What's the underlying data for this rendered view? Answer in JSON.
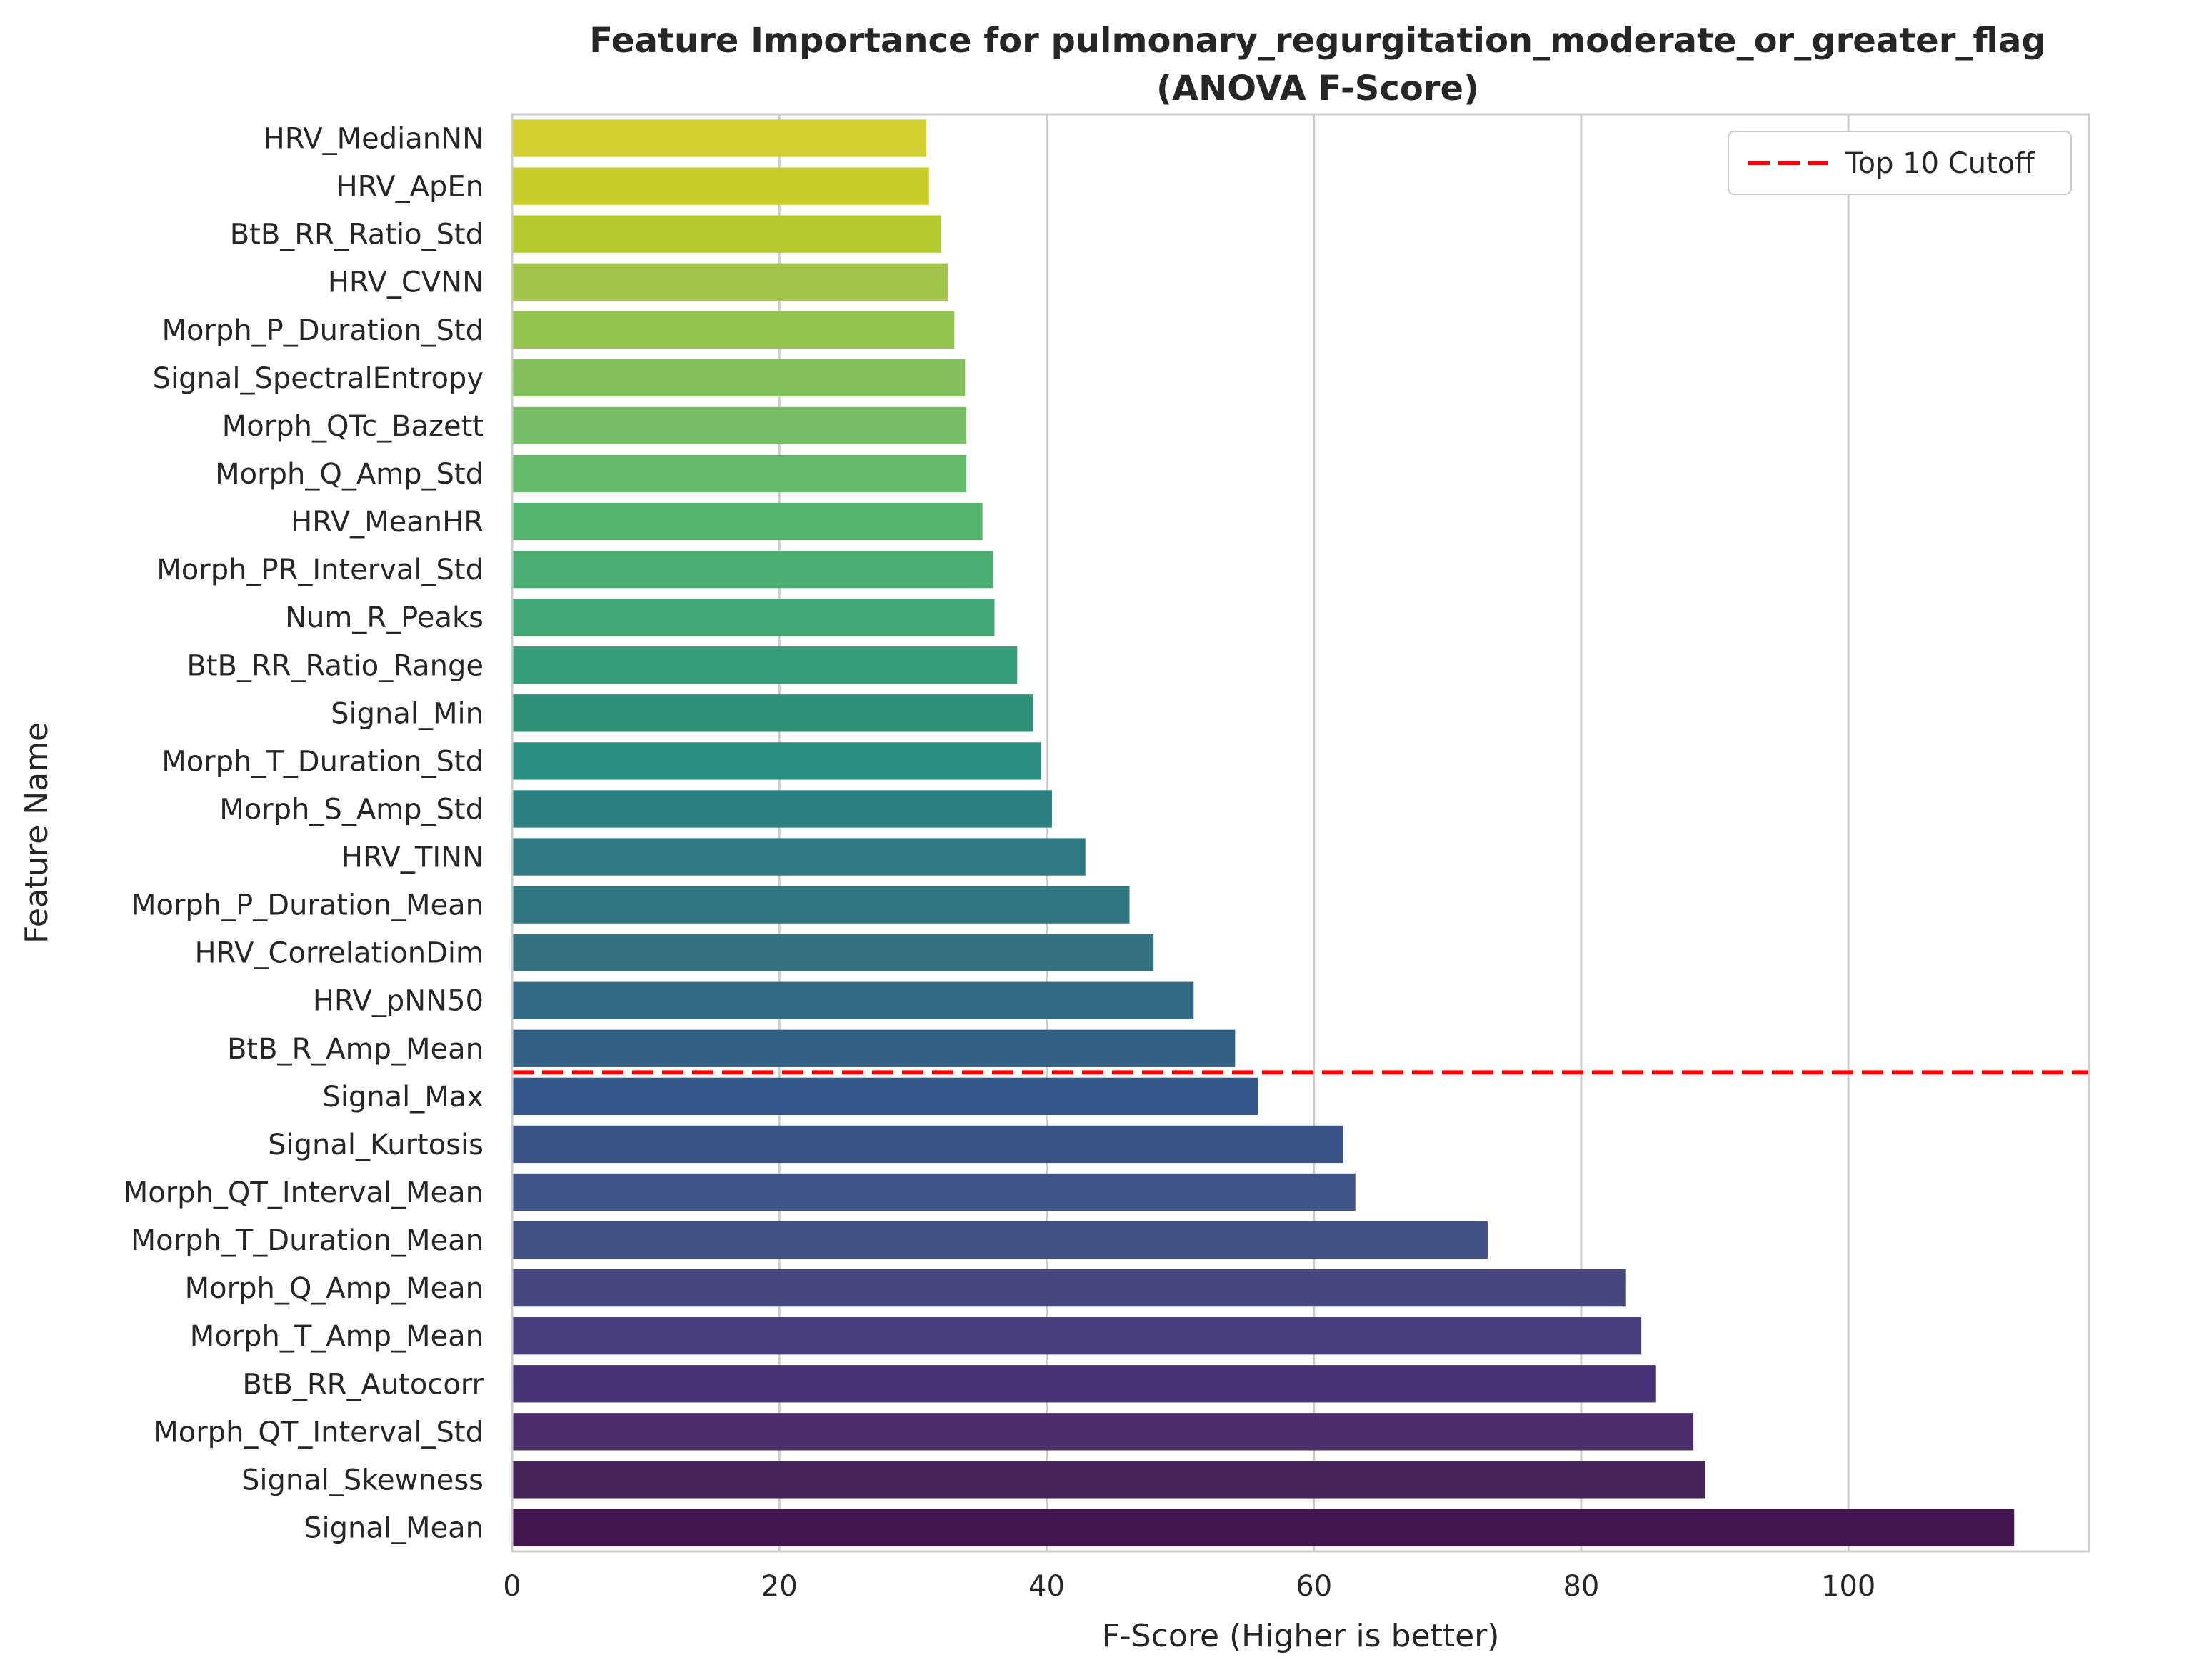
{
  "chart_data": {
    "type": "bar",
    "orientation": "horizontal",
    "title": "Feature Importance for pulmonary_regurgitation_moderate_or_greater_flag",
    "subtitle": "(ANOVA F-Score)",
    "xlabel": "F-Score (Higher is better)",
    "ylabel": "Feature Name",
    "xlim": [
      0,
      118
    ],
    "xticks": [
      "0",
      "20",
      "40",
      "60",
      "80",
      "100"
    ],
    "grid": true,
    "legend": {
      "placement": "top-right",
      "label": "Top 10 Cutoff",
      "color": "#ff0000"
    },
    "cutoff_after_category": "BtB_R_Amp_Mean",
    "categories": [
      "HRV_MedianNN",
      "HRV_ApEn",
      "BtB_RR_Ratio_Std",
      "HRV_CVNN",
      "Morph_P_Duration_Std",
      "Signal_SpectralEntropy",
      "Morph_QTc_Bazett",
      "Morph_Q_Amp_Std",
      "HRV_MeanHR",
      "Morph_PR_Interval_Std",
      "Num_R_Peaks",
      "BtB_RR_Ratio_Range",
      "Signal_Min",
      "Morph_T_Duration_Std",
      "Morph_S_Amp_Std",
      "HRV_TINN",
      "Morph_P_Duration_Mean",
      "HRV_CorrelationDim",
      "HRV_pNN50",
      "BtB_R_Amp_Mean",
      "Signal_Max",
      "Signal_Kurtosis",
      "Morph_QT_Interval_Mean",
      "Morph_T_Duration_Mean",
      "Morph_Q_Amp_Mean",
      "Morph_T_Amp_Mean",
      "BtB_RR_Autocorr",
      "Morph_QT_Interval_Std",
      "Signal_Skewness",
      "Signal_Mean"
    ],
    "values": [
      31.0,
      31.2,
      32.1,
      32.6,
      33.1,
      33.9,
      34.0,
      34.0,
      35.2,
      36.0,
      36.1,
      37.8,
      39.0,
      39.6,
      40.4,
      42.9,
      46.2,
      48.0,
      51.0,
      54.1,
      55.8,
      62.2,
      63.1,
      73.0,
      83.3,
      84.5,
      85.6,
      88.4,
      89.3,
      112.4
    ],
    "colors": [
      "#d0cf2f",
      "#c6cd2a",
      "#b4c92b",
      "#a1c54a",
      "#93c34e",
      "#83c05c",
      "#77bd66",
      "#66ba6c",
      "#55b46e",
      "#4aae73",
      "#43a775",
      "#369c7a",
      "#2f9079",
      "#2a8d80",
      "#2b8081",
      "#2f7a82",
      "#317781",
      "#357181",
      "#336a85",
      "#326084",
      "#34578a",
      "#385285",
      "#3f5588",
      "#425283",
      "#46477f",
      "#493d7d",
      "#473477",
      "#4b2d6c",
      "#48245d",
      "#431551"
    ]
  }
}
